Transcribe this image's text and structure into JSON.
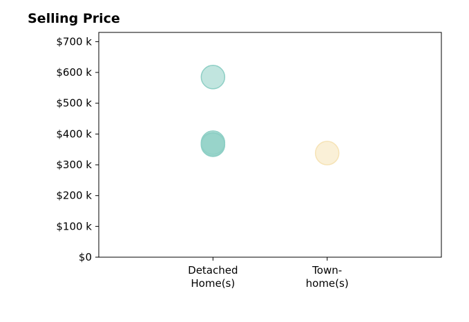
{
  "chart_data": {
    "type": "scatter",
    "title": "Selling Price",
    "xlabel": "",
    "ylabel": "",
    "categories": [
      "Detached\nHome(s)",
      "Town-\nhome(s)"
    ],
    "x_range": [
      -1,
      2
    ],
    "ylim": [
      0,
      730000
    ],
    "y_ticks": [
      0,
      100000,
      200000,
      300000,
      400000,
      500000,
      600000,
      700000
    ],
    "y_tick_labels": [
      "$0",
      "$100 k",
      "$200 k",
      "$300 k",
      "$400 k",
      "$500 k",
      "$600 k",
      "$700 k"
    ],
    "grid": false,
    "series": [
      {
        "category": "Detached\nHome(s)",
        "color": "#8ecfc5",
        "points": [
          {
            "x": 0,
            "y": 585000
          },
          {
            "x": 0,
            "y": 372000
          },
          {
            "x": 0,
            "y": 367000
          },
          {
            "x": 0,
            "y": 365000
          }
        ]
      },
      {
        "category": "Town-\nhome(s)",
        "color": "#f6e3b6",
        "points": [
          {
            "x": 1,
            "y": 338000
          }
        ]
      }
    ]
  }
}
